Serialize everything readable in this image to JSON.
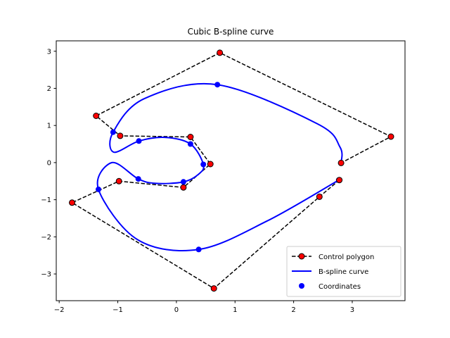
{
  "chart_data": {
    "type": "line",
    "title": "Cubic B-spline curve",
    "xlabel": "",
    "ylabel": "",
    "xlim": [
      -2.05,
      3.9
    ],
    "ylim": [
      -3.72,
      3.28
    ],
    "xticks": [
      -2,
      -1,
      0,
      1,
      2,
      3
    ],
    "yticks": [
      -3,
      -2,
      -1,
      0,
      1,
      2,
      3
    ],
    "grid": false,
    "legend_position": "lower-right",
    "colors": {
      "control_polygon_line": "#000000",
      "control_point_fill": "#ff0000",
      "curve": "#0000ff",
      "coordinates": "#0000ff"
    },
    "series": [
      {
        "name": "Control polygon",
        "style": "dashed line with circle markers",
        "points": [
          [
            2.78,
            -0.47
          ],
          [
            2.44,
            -0.92
          ],
          [
            0.64,
            -3.39
          ],
          [
            -1.78,
            -1.08
          ],
          [
            -0.98,
            -0.5
          ],
          [
            0.12,
            -0.67
          ],
          [
            0.58,
            -0.04
          ],
          [
            0.24,
            0.69
          ],
          [
            -0.96,
            0.72
          ],
          [
            -1.37,
            1.26
          ],
          [
            0.74,
            2.96
          ],
          [
            3.66,
            0.7
          ],
          [
            2.81,
            -0.01
          ]
        ]
      },
      {
        "name": "B-spline curve",
        "style": "solid line",
        "points": [
          [
            2.77,
            -0.47
          ],
          [
            1.55,
            -1.57
          ],
          [
            0.38,
            -2.34
          ],
          [
            -0.66,
            -2.08
          ],
          [
            -1.33,
            -0.72
          ],
          [
            -1.1,
            0.0
          ],
          [
            -0.65,
            -0.44
          ],
          [
            -0.35,
            -0.56
          ],
          [
            0.12,
            -0.52
          ],
          [
            0.38,
            -0.31
          ],
          [
            0.46,
            -0.05
          ],
          [
            0.24,
            0.5
          ],
          [
            -0.2,
            0.68
          ],
          [
            -0.64,
            0.58
          ],
          [
            -1.07,
            0.28
          ],
          [
            -1.08,
            0.82
          ],
          [
            -0.55,
            1.72
          ],
          [
            0.7,
            2.1
          ],
          [
            2.4,
            1.05
          ],
          [
            2.79,
            0.42
          ],
          [
            2.81,
            -0.01
          ]
        ]
      },
      {
        "name": "Coordinates",
        "style": "blue circle markers",
        "points": [
          [
            2.77,
            -0.47
          ],
          [
            0.38,
            -2.34
          ],
          [
            -1.33,
            -0.72
          ],
          [
            -0.65,
            -0.44
          ],
          [
            0.12,
            -0.52
          ],
          [
            0.46,
            -0.05
          ],
          [
            0.24,
            0.5
          ],
          [
            -0.64,
            0.58
          ],
          [
            -1.08,
            0.82
          ],
          [
            0.7,
            2.1
          ],
          [
            2.81,
            -0.01
          ]
        ]
      }
    ]
  }
}
